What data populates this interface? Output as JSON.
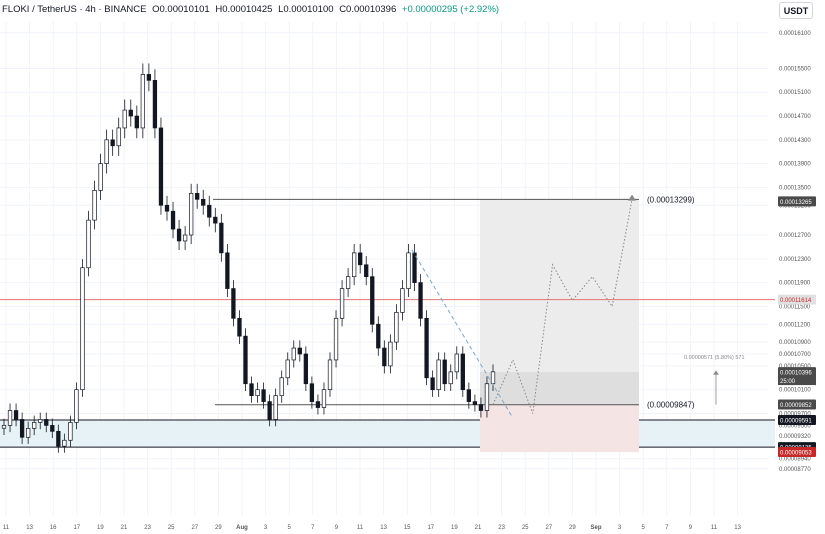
{
  "header": {
    "symbol": "FLOKI / TetherUS · 4h · BINANCE",
    "open": "O0.00010101",
    "high": "H0.00010425",
    "low": "L0.00010100",
    "close": "C0.00010396",
    "change": "+0.00000295 (+2.92%)"
  },
  "currency_button": "USDT",
  "colors": {
    "up": "#089981",
    "down": "#131722",
    "resistance_line": "#e57373",
    "support_zone": "#e6f2f5",
    "target_box": "#e6e6e6",
    "stop_box": "#f5e4e4"
  },
  "chart_data": {
    "type": "candlestick",
    "symbol": "FLOKI/USDT",
    "timeframe": "4h",
    "exchange": "BINANCE",
    "ylim": [
      8.75e-05,
      0.0001618
    ],
    "y_ticks": [
      "0.00016100",
      "0.00015500",
      "0.00015100",
      "0.00014700",
      "0.00014300",
      "0.00013900",
      "0.00013500",
      "0.00013200",
      "0.00012700",
      "0.00012300",
      "0.00011900",
      "0.00011500",
      "0.00011200",
      "0.00010900",
      "0.00010700",
      "0.00010500",
      "0.00010100",
      "0.00009700",
      "0.00009500",
      "0.00009320",
      "0.00009140",
      "0.00008940",
      "0.00008770"
    ],
    "x_ticks": [
      "11",
      "13",
      "16",
      "17",
      "19",
      "21",
      "23",
      "25",
      "27",
      "29",
      "Aug",
      "3",
      "5",
      "7",
      "9",
      "11",
      "13",
      "15",
      "17",
      "19",
      "21",
      "23",
      "25",
      "27",
      "29",
      "Sep",
      "3",
      "5",
      "7",
      "9",
      "11",
      "13"
    ],
    "price_close_series": [
      9.5e-05,
      9.75e-05,
      9.6e-05,
      9.3e-05,
      9.45e-05,
      9.55e-05,
      9.6e-05,
      9.5e-05,
      9.4e-05,
      9.15e-05,
      9.25e-05,
      9.55e-05,
      0.000101,
      0.0001215,
      0.0001295,
      0.0001345,
      0.000139,
      0.000143,
      0.000142,
      0.000145,
      0.000148,
      0.000147,
      0.000145,
      0.000154,
      0.000153,
      0.000145,
      0.000132,
      0.000131,
      0.000128,
      0.000126,
      0.000127,
      0.000134,
      0.000133,
      0.000132,
      0.00013,
      0.000129,
      0.000124,
      0.000118,
      0.000113,
      0.00011,
      0.000102,
      0.0001,
      0.000101,
      9.9e-05,
      9.6e-05,
      0.0001,
      0.000103,
      0.000106,
      0.000108,
      0.000107,
      0.000102,
      9.9e-05,
      9.8e-05,
      0.000101,
      0.000106,
      0.000113,
      0.000118,
      0.00012,
      0.000124,
      0.000122,
      0.00012,
      0.000112,
      0.000108,
      0.000105,
      0.000109,
      0.000114,
      0.000118,
      0.000124,
      0.000119,
      0.000113,
      0.000103,
      0.000101,
      0.000106,
      0.000102,
      0.000104,
      0.000107,
      0.000101,
      9.9e-05,
      9.85e-05,
      9.75e-05,
      0.000102,
      0.000104
    ],
    "projection_path": [
      9.85e-05,
      0.000106,
      9.7e-05,
      0.000122,
      0.000116,
      0.00012,
      0.000115,
      0.000133
    ],
    "levels": [
      {
        "label": "(0.00013299)",
        "value": 0.00013299
      },
      {
        "label": "(0.00009847)",
        "value": 9.847e-05
      }
    ],
    "resistance_value": 0.00011614,
    "zone_top": 9.591e-05,
    "zone_bottom": 9.135e-05,
    "trendline": [
      0.0001245,
      9.65e-05
    ],
    "price_badges": [
      {
        "text": "0.00013265",
        "value": 0.00013265,
        "bg": "#4a4a4a",
        "fg": "#ffffff"
      },
      {
        "text": "0.00011614",
        "value": 0.00011614,
        "bg": "#e0e0e0",
        "fg": "#c62828"
      },
      {
        "text": "0.00010396",
        "value": 0.00010396,
        "bg": "#4a4a4a",
        "fg": "#ffffff"
      },
      {
        "text": "0.00009852",
        "value": 9.852e-05,
        "bg": "#4a4a4a",
        "fg": "#ffffff"
      },
      {
        "text": "0.00009591",
        "value": 9.591e-05,
        "bg": "#131722",
        "fg": "#ffffff"
      },
      {
        "text": "0.00009135",
        "value": 9.135e-05,
        "bg": "#131722",
        "fg": "#ffffff"
      },
      {
        "text": "0.00009053",
        "value": 9.053e-05,
        "bg": "#c62828",
        "fg": "#ffffff"
      }
    ],
    "badge_countdown": "25:00",
    "measure_label": "0.00000571 (5.80%) 571"
  }
}
